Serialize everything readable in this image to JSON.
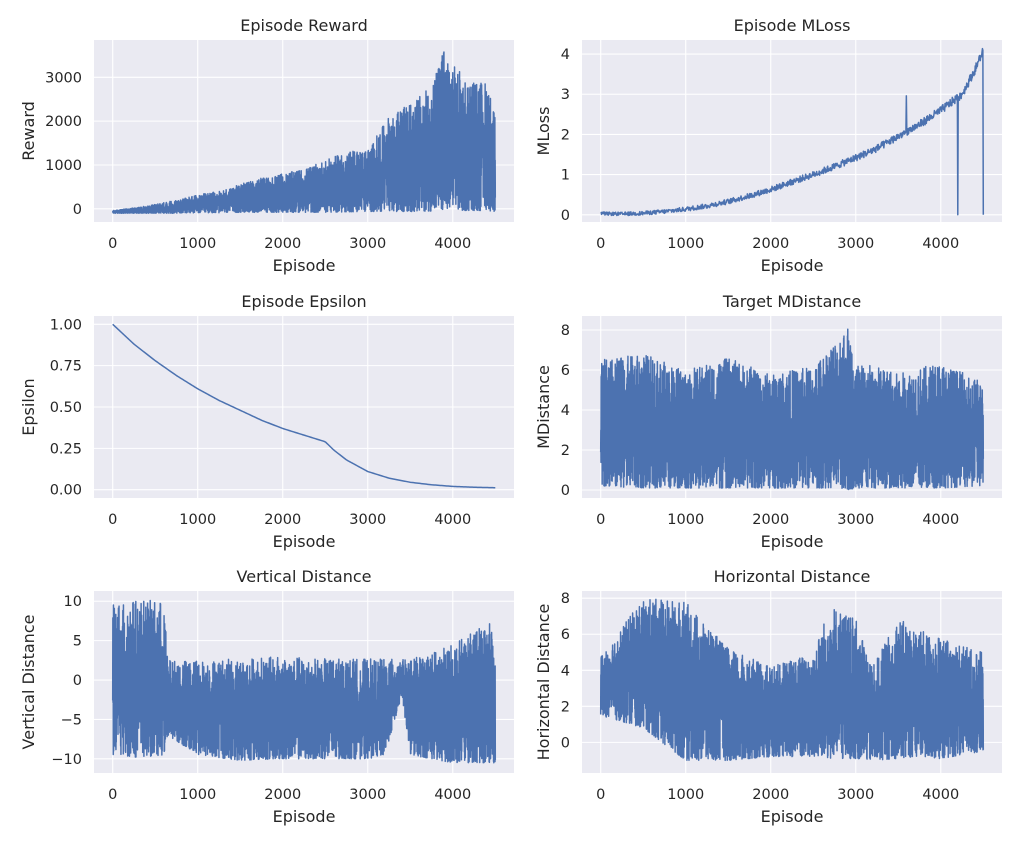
{
  "theme": {
    "panel_bg": "#eaeaf2",
    "grid": "#ffffff",
    "line": "#4c72b0",
    "text": "#262626"
  },
  "chart_data": [
    {
      "type": "line",
      "title": "Episode Reward",
      "xlabel": "Episode",
      "ylabel": "Reward",
      "xlim": [
        -220,
        4720
      ],
      "ylim": [
        -300,
        3850
      ],
      "xticks": [
        0,
        1000,
        2000,
        3000,
        4000
      ],
      "yticks": [
        0,
        1000,
        2000,
        3000
      ],
      "grid": true,
      "series": [
        {
          "x": [
            0,
            250,
            500,
            750,
            1000,
            1250,
            1500,
            1750,
            2000,
            2250,
            2500,
            2750,
            3000,
            3250,
            3500,
            3750,
            3900,
            4000,
            4200,
            4400,
            4500
          ],
          "y_low": [
            -100,
            -100,
            -100,
            -100,
            -90,
            -90,
            -80,
            -80,
            -80,
            -80,
            -80,
            -70,
            -60,
            -60,
            -60,
            -50,
            -50,
            -40,
            -40,
            -40,
            -60
          ],
          "y_high": [
            -40,
            20,
            100,
            200,
            320,
            400,
            560,
            700,
            800,
            900,
            1100,
            1300,
            1350,
            2100,
            2400,
            2800,
            3650,
            3300,
            2900,
            2900,
            2200
          ]
        }
      ]
    },
    {
      "type": "line",
      "title": "Episode MLoss",
      "xlabel": "Episode",
      "ylabel": "MLoss",
      "xlim": [
        -220,
        4720
      ],
      "ylim": [
        -0.18,
        4.35
      ],
      "xticks": [
        0,
        1000,
        2000,
        3000,
        4000
      ],
      "yticks": [
        0,
        1,
        2,
        3,
        4
      ],
      "grid": true,
      "series": [
        {
          "x": [
            0,
            250,
            500,
            750,
            1000,
            1250,
            1500,
            1750,
            2000,
            2250,
            2500,
            2750,
            3000,
            3250,
            3500,
            3750,
            4000,
            4250,
            4400,
            4500
          ],
          "y": [
            0.03,
            0.02,
            0.04,
            0.08,
            0.14,
            0.22,
            0.33,
            0.47,
            0.63,
            0.82,
            1.0,
            1.2,
            1.42,
            1.65,
            1.95,
            2.25,
            2.6,
            3.0,
            3.6,
            4.1
          ]
        }
      ]
    },
    {
      "type": "line",
      "title": "Episode Epsilon",
      "xlabel": "Episode",
      "ylabel": "Epsilon",
      "xlim": [
        -220,
        4720
      ],
      "ylim": [
        -0.05,
        1.05
      ],
      "xticks": [
        0,
        1000,
        2000,
        3000,
        4000
      ],
      "yticks": [
        0.0,
        0.25,
        0.5,
        0.75,
        1.0
      ],
      "ytick_labels": [
        "0.00",
        "0.25",
        "0.50",
        "0.75",
        "1.00"
      ],
      "grid": true,
      "series": [
        {
          "x": [
            0,
            250,
            500,
            750,
            1000,
            1250,
            1500,
            1750,
            2000,
            2250,
            2500,
            2600,
            2750,
            3000,
            3250,
            3500,
            3750,
            4000,
            4250,
            4500
          ],
          "y": [
            1.0,
            0.88,
            0.78,
            0.69,
            0.61,
            0.54,
            0.48,
            0.42,
            0.37,
            0.33,
            0.29,
            0.24,
            0.18,
            0.11,
            0.07,
            0.045,
            0.03,
            0.02,
            0.015,
            0.012
          ]
        }
      ]
    },
    {
      "type": "line",
      "title": "Target MDistance",
      "xlabel": "Episode",
      "ylabel": "MDistance",
      "xlim": [
        -220,
        4720
      ],
      "ylim": [
        -0.4,
        8.7
      ],
      "xticks": [
        0,
        1000,
        2000,
        3000,
        4000
      ],
      "yticks": [
        0,
        2,
        4,
        6,
        8
      ],
      "grid": true,
      "series": [
        {
          "x": [
            0,
            500,
            1000,
            1500,
            2000,
            2500,
            2750,
            2900,
            3000,
            3250,
            3500,
            4000,
            4500
          ],
          "y_low": [
            0.2,
            0.1,
            0.1,
            0.1,
            0.1,
            0.1,
            0.1,
            0.0,
            0.1,
            0.1,
            0.1,
            0.1,
            0.2
          ],
          "y_high": [
            6.5,
            6.8,
            6.0,
            6.6,
            5.8,
            6.2,
            7.5,
            8.3,
            6.4,
            6.2,
            5.8,
            6.4,
            5.4
          ]
        }
      ]
    },
    {
      "type": "line",
      "title": "Vertical Distance",
      "xlabel": "Episode",
      "ylabel": "Vertical Distance",
      "xlim": [
        -220,
        4720
      ],
      "ylim": [
        -11.8,
        11.3
      ],
      "xticks": [
        0,
        1000,
        2000,
        3000,
        4000
      ],
      "yticks": [
        -10,
        -5,
        0,
        5,
        10
      ],
      "ytick_labels": [
        "−10",
        "−5",
        "0",
        "5",
        "10"
      ],
      "grid": true,
      "series": [
        {
          "x": [
            0,
            300,
            600,
            650,
            1000,
            1500,
            2000,
            2500,
            3000,
            3200,
            3400,
            3500,
            4000,
            4450,
            4500
          ],
          "y_low": [
            -9.5,
            -9.8,
            -9.5,
            -7.0,
            -9.5,
            -10.2,
            -10.0,
            -10.0,
            -10.0,
            -9.5,
            -2.0,
            -9.5,
            -10.5,
            -10.5,
            -10.5
          ],
          "y_high": [
            10.0,
            10.2,
            10.0,
            2.5,
            2.5,
            2.7,
            3.0,
            2.7,
            2.7,
            2.7,
            2.6,
            2.6,
            4.5,
            7.5,
            2.0
          ]
        }
      ]
    },
    {
      "type": "line",
      "title": "Horizontal Distance",
      "xlabel": "Episode",
      "ylabel": "Horizontal Distance",
      "xlim": [
        -220,
        4720
      ],
      "ylim": [
        -1.7,
        8.4
      ],
      "xticks": [
        0,
        1000,
        2000,
        3000,
        4000
      ],
      "yticks": [
        0,
        2,
        4,
        6,
        8
      ],
      "grid": true,
      "series": [
        {
          "x": [
            0,
            500,
            1000,
            1500,
            2000,
            2500,
            2700,
            3000,
            3200,
            3500,
            3700,
            4000,
            4500
          ],
          "y_low": [
            1.5,
            0.8,
            -1.0,
            -1.0,
            -0.8,
            -0.8,
            -0.9,
            -0.9,
            -1.0,
            -0.9,
            -0.8,
            -0.9,
            -0.5
          ],
          "y_high": [
            4.8,
            8.0,
            7.8,
            5.2,
            4.2,
            5.0,
            7.7,
            6.8,
            4.2,
            6.9,
            6.3,
            5.8,
            5.0
          ]
        }
      ]
    }
  ]
}
